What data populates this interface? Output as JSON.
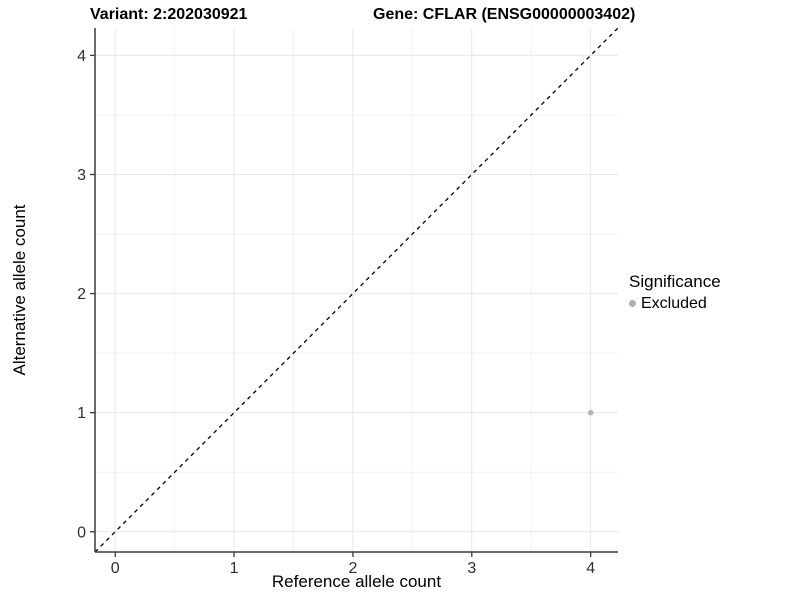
{
  "chart_data": {
    "type": "scatter",
    "title_left": "Variant: 2:202030921",
    "title_right": "Gene: CFLAR (ENSG00000003402)",
    "xlabel": "Reference allele count",
    "ylabel": "Alternative allele count",
    "xlim": [
      -0.17,
      4.23
    ],
    "ylim": [
      -0.17,
      4.23
    ],
    "x_ticks": [
      0,
      1,
      2,
      3,
      4
    ],
    "y_ticks": [
      0,
      1,
      2,
      3,
      4
    ],
    "minor_grid_step": 0.5,
    "grid": true,
    "identity_line": {
      "style": "dashed",
      "color": "#000000",
      "from": -0.17,
      "to": 4.23
    },
    "series": [
      {
        "name": "Excluded",
        "color": "#b4b4b4",
        "point_radius": 2.8,
        "points": [
          {
            "x": 4,
            "y": 1
          }
        ]
      }
    ],
    "legend": {
      "position": "right",
      "title": "Significance",
      "items": [
        {
          "label": "Excluded",
          "color": "#b0b0b0"
        }
      ]
    },
    "colors": {
      "major_grid": "#e7e7e7",
      "minor_grid": "#f3f3f3",
      "axis": "#3a3a3a",
      "tick_text": "#303030"
    }
  }
}
